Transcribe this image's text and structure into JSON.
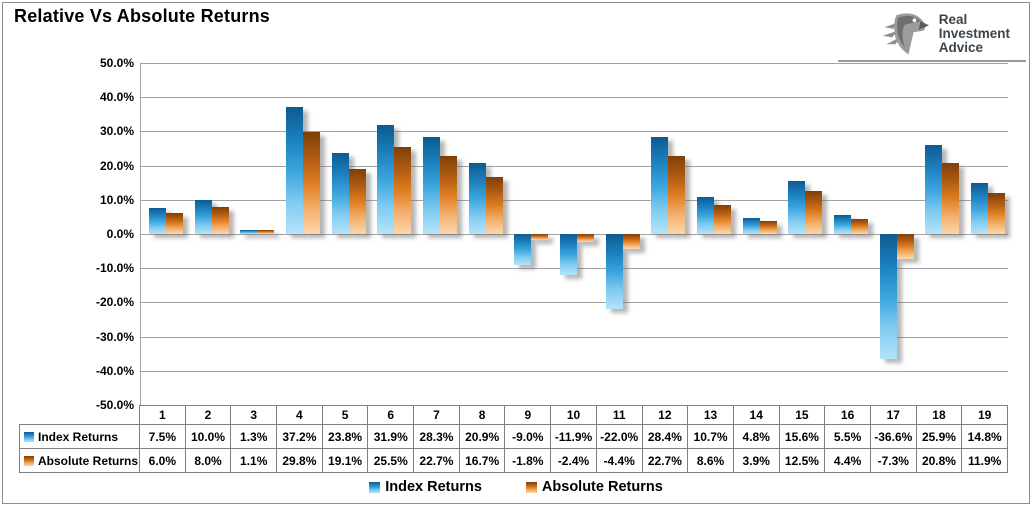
{
  "title": "Relative Vs Absolute Returns",
  "logo": {
    "lines": [
      "Real",
      "Investment",
      "Advice"
    ]
  },
  "colors": {
    "index_gradient": [
      "#0D5A90",
      "#1B7FBD",
      "#3AA4DD",
      "#7FCBF0",
      "#B5E3FA"
    ],
    "absolute_gradient": [
      "#7F3F08",
      "#AE5A11",
      "#DE7E22",
      "#F3AF6B",
      "#FBD7AC"
    ],
    "grid": "#A3A3A3",
    "table_border": "#7F7F7F"
  },
  "chart_data": {
    "type": "bar",
    "title": "Relative Vs Absolute Returns",
    "categories": [
      "1",
      "2",
      "3",
      "4",
      "5",
      "6",
      "7",
      "8",
      "9",
      "10",
      "11",
      "12",
      "13",
      "14",
      "15",
      "16",
      "17",
      "18",
      "19"
    ],
    "series": [
      {
        "name": "Index Returns",
        "values": [
          7.5,
          10.0,
          1.3,
          37.2,
          23.8,
          31.9,
          28.3,
          20.9,
          -9.0,
          -11.9,
          -22.0,
          28.4,
          10.7,
          4.8,
          15.6,
          5.5,
          -36.6,
          25.9,
          14.8
        ]
      },
      {
        "name": "Absolute Returns",
        "values": [
          6.0,
          8.0,
          1.1,
          29.8,
          19.1,
          25.5,
          22.7,
          16.7,
          -1.8,
          -2.4,
          -4.4,
          22.7,
          8.6,
          3.9,
          12.5,
          4.4,
          -7.3,
          20.8,
          11.9
        ]
      }
    ],
    "ylim": [
      -50,
      50
    ],
    "ytick_step": 10,
    "yticks": [
      "50.0%",
      "40.0%",
      "30.0%",
      "20.0%",
      "10.0%",
      "0.0%",
      "-10.0%",
      "-20.0%",
      "-30.0%",
      "-40.0%",
      "-50.0%"
    ],
    "grid": true,
    "legend_position": "bottom"
  },
  "table": {
    "header_row": [
      "1",
      "2",
      "3",
      "4",
      "5",
      "6",
      "7",
      "8",
      "9",
      "10",
      "11",
      "12",
      "13",
      "14",
      "15",
      "16",
      "17",
      "18",
      "19"
    ],
    "rows": [
      {
        "label": "Index Returns",
        "values": [
          "7.5%",
          "10.0%",
          "1.3%",
          "37.2%",
          "23.8%",
          "31.9%",
          "28.3%",
          "20.9%",
          "-9.0%",
          "-11.9%",
          "-22.0%",
          "28.4%",
          "10.7%",
          "4.8%",
          "15.6%",
          "5.5%",
          "-36.6%",
          "25.9%",
          "14.8%"
        ]
      },
      {
        "label": "Absolute Returns",
        "values": [
          "6.0%",
          "8.0%",
          "1.1%",
          "29.8%",
          "19.1%",
          "25.5%",
          "22.7%",
          "16.7%",
          "-1.8%",
          "-2.4%",
          "-4.4%",
          "22.7%",
          "8.6%",
          "3.9%",
          "12.5%",
          "4.4%",
          "-7.3%",
          "20.8%",
          "11.9%"
        ]
      }
    ]
  },
  "legend": {
    "items": [
      "Index Returns",
      "Absolute Returns"
    ]
  }
}
